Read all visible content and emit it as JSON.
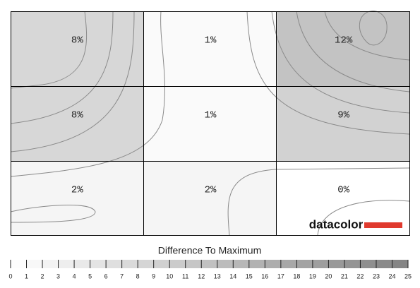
{
  "chart_data": {
    "type": "heatmap",
    "title": "Difference To Maximum",
    "values": [
      [
        8,
        1,
        12
      ],
      [
        8,
        1,
        9
      ],
      [
        2,
        2,
        0
      ]
    ],
    "value_labels": [
      [
        "8%",
        "1%",
        "12%"
      ],
      [
        "8%",
        "1%",
        "9%"
      ],
      [
        "2%",
        "2%",
        "0%"
      ]
    ],
    "clim": [
      0,
      25
    ],
    "cticks": [
      0,
      1,
      2,
      3,
      4,
      5,
      6,
      7,
      8,
      9,
      10,
      11,
      12,
      13,
      14,
      15,
      16,
      17,
      18,
      19,
      20,
      21,
      22,
      23,
      24,
      25
    ],
    "logo": "datacolor"
  }
}
